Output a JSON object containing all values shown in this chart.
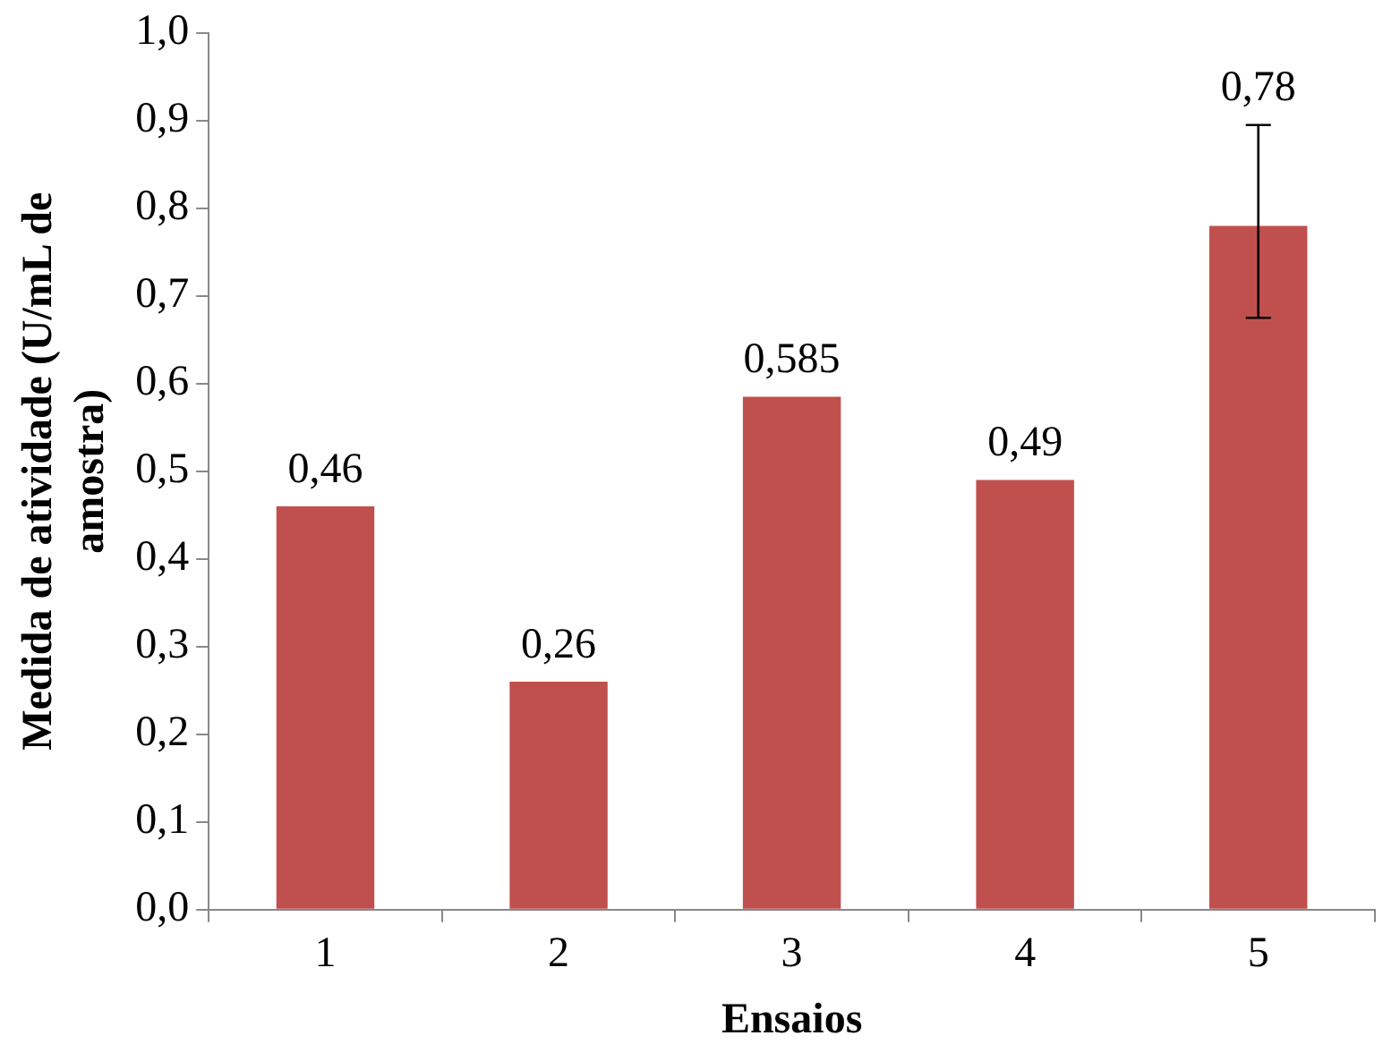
{
  "chart_data": {
    "type": "bar",
    "xlabel": "Ensaios",
    "ylabel": "Medida de atividade (U/mL de amostra)",
    "categories": [
      "1",
      "2",
      "3",
      "4",
      "5"
    ],
    "values": [
      0.46,
      0.26,
      0.585,
      0.49,
      0.78
    ],
    "value_labels": [
      "0,46",
      "0,26",
      "0,585",
      "0,49",
      "0,78"
    ],
    "errors": [
      null,
      null,
      null,
      null,
      [
        0.675,
        0.895
      ]
    ],
    "color": "#c0504d",
    "ylim": [
      0,
      1
    ],
    "yticks": [
      {
        "value": 0,
        "label": "0,0"
      },
      {
        "value": 0.1,
        "label": "0,1"
      },
      {
        "value": 0.2,
        "label": "0,2"
      },
      {
        "value": 0.3,
        "label": "0,3"
      },
      {
        "value": 0.4,
        "label": "0,4"
      },
      {
        "value": 0.5,
        "label": "0,5"
      },
      {
        "value": 0.6,
        "label": "0,6"
      },
      {
        "value": 0.7,
        "label": "0,7"
      },
      {
        "value": 0.8,
        "label": "0,8"
      },
      {
        "value": 0.9,
        "label": "0,9"
      },
      {
        "value": 1,
        "label": "1,0"
      }
    ],
    "grid": false,
    "legend": false
  }
}
